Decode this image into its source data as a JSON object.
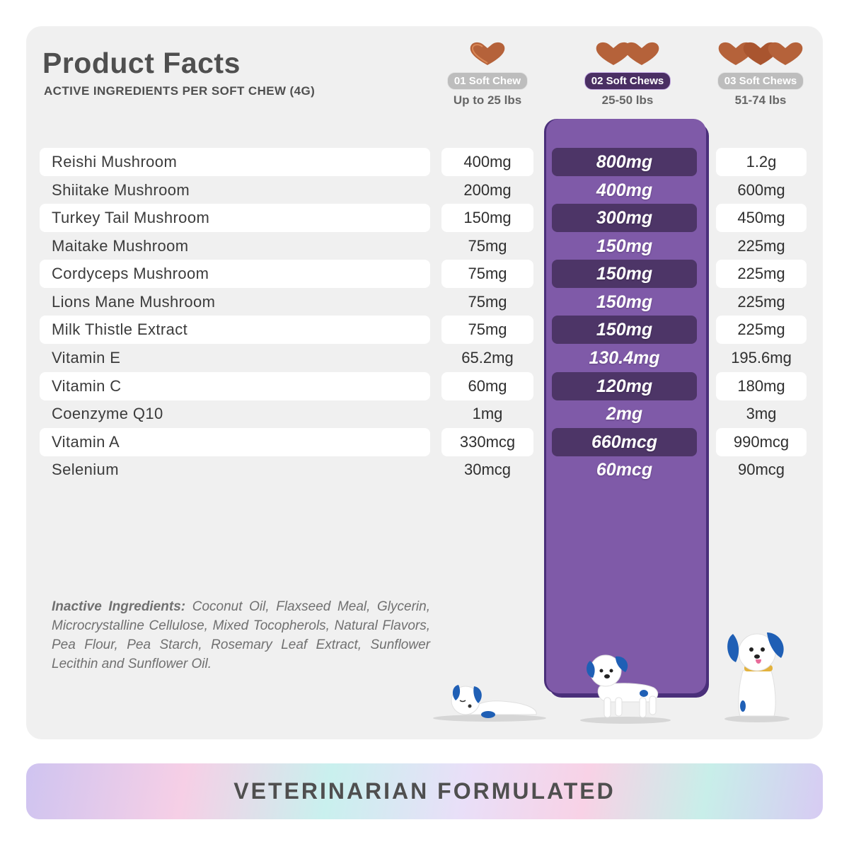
{
  "header": {
    "title": "Product Facts",
    "subtitle": "ACTIVE INGREDIENTS PER SOFT CHEW (4G)"
  },
  "doses": [
    {
      "label": "01 Soft Chew",
      "weight": "Up to 25 lbs"
    },
    {
      "label": "02 Soft Chews",
      "weight": "25-50 lbs"
    },
    {
      "label": "03 Soft Chews",
      "weight": "51-74 lbs"
    }
  ],
  "ingredients": [
    {
      "name": "Reishi Mushroom",
      "v1": "400mg",
      "v2": "800mg",
      "v3": "1.2g"
    },
    {
      "name": "Shiitake Mushroom",
      "v1": "200mg",
      "v2": "400mg",
      "v3": "600mg"
    },
    {
      "name": "Turkey Tail Mushroom",
      "v1": "150mg",
      "v2": "300mg",
      "v3": "450mg"
    },
    {
      "name": "Maitake Mushroom",
      "v1": "75mg",
      "v2": "150mg",
      "v3": "225mg"
    },
    {
      "name": "Cordyceps Mushroom",
      "v1": "75mg",
      "v2": "150mg",
      "v3": "225mg"
    },
    {
      "name": "Lions Mane Mushroom",
      "v1": "75mg",
      "v2": "150mg",
      "v3": "225mg"
    },
    {
      "name": "Milk Thistle Extract",
      "v1": "75mg",
      "v2": "150mg",
      "v3": "225mg"
    },
    {
      "name": "Vitamin E",
      "v1": "65.2mg",
      "v2": "130.4mg",
      "v3": "195.6mg"
    },
    {
      "name": "Vitamin C",
      "v1": "60mg",
      "v2": "120mg",
      "v3": "180mg"
    },
    {
      "name": "Coenzyme Q10",
      "v1": "1mg",
      "v2": "2mg",
      "v3": "3mg"
    },
    {
      "name": "Vitamin A",
      "v1": "330mcg",
      "v2": "660mcg",
      "v3": "990mcg"
    },
    {
      "name": "Selenium",
      "v1": "30mcg",
      "v2": "60mcg",
      "v3": "90mcg"
    }
  ],
  "inactive": {
    "label": "Inactive Ingredients:",
    "text": " Coconut Oil, Flaxseed Meal, Glycerin, Microcrystalline Cellulose, Mixed Tocopherols, Natural Flavors, Pea Flour, Pea Starch, Rosemary Leaf Extract, Sunflower Lecithin and Sunflower Oil."
  },
  "banner": "VETERINARIAN  FORMULATED",
  "colors": {
    "accent_purple": "#7f5aa8",
    "dark_purple": "#4d3567",
    "chew_brown": "#b5623a"
  },
  "icons": [
    "soft-chew-icon",
    "sleeping-dog-icon",
    "walking-dog-icon",
    "sitting-dog-icon"
  ]
}
